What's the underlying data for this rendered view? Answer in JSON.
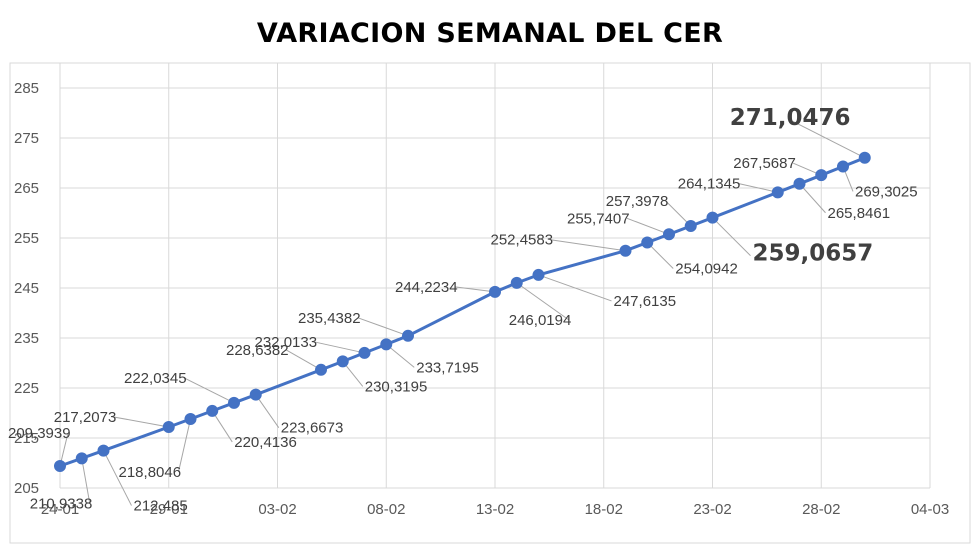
{
  "chart_data": {
    "type": "line",
    "title": "VARIACION SEMANAL DEL CER",
    "xlabel": "",
    "ylabel": "",
    "ylim": [
      205,
      290
    ],
    "y_ticks": [
      205,
      215,
      225,
      235,
      245,
      255,
      265,
      275,
      285
    ],
    "x_ticks": [
      {
        "label": "24-01",
        "day": 0
      },
      {
        "label": "29-01",
        "day": 5
      },
      {
        "label": "03-02",
        "day": 10
      },
      {
        "label": "08-02",
        "day": 15
      },
      {
        "label": "13-02",
        "day": 20
      },
      {
        "label": "18-02",
        "day": 25
      },
      {
        "label": "23-02",
        "day": 30
      },
      {
        "label": "28-02",
        "day": 35
      },
      {
        "label": "04-03",
        "day": 40
      }
    ],
    "grid": true,
    "legend": "none",
    "series": [
      {
        "color": "#4472C4",
        "points": [
          {
            "day": 0,
            "value": 209.3939,
            "label": "209,3939"
          },
          {
            "day": 1,
            "value": 210.9338,
            "label": "210,9338"
          },
          {
            "day": 2,
            "value": 212.485,
            "label": "212,485"
          },
          {
            "day": 5,
            "value": 217.2073,
            "label": "217,2073"
          },
          {
            "day": 6,
            "value": 218.8046,
            "label": "218,8046"
          },
          {
            "day": 7,
            "value": 220.4136,
            "label": "220,4136"
          },
          {
            "day": 8,
            "value": 222.0345,
            "label": "222,0345"
          },
          {
            "day": 9,
            "value": 223.6673,
            "label": "223,6673"
          },
          {
            "day": 12,
            "value": 228.6382,
            "label": "228,6382"
          },
          {
            "day": 13,
            "value": 230.3195,
            "label": "230,3195"
          },
          {
            "day": 14,
            "value": 232.0133,
            "label": "232,0133"
          },
          {
            "day": 15,
            "value": 233.7195,
            "label": "233,7195"
          },
          {
            "day": 16,
            "value": 235.4382,
            "label": "235,4382"
          },
          {
            "day": 20,
            "value": 244.2234,
            "label": "244,2234"
          },
          {
            "day": 21,
            "value": 246.0194,
            "label": "246,0194"
          },
          {
            "day": 22,
            "value": 247.6135,
            "label": "247,6135"
          },
          {
            "day": 26,
            "value": 252.4583,
            "label": "252,4583"
          },
          {
            "day": 27,
            "value": 254.0942,
            "label": "254,0942"
          },
          {
            "day": 28,
            "value": 255.7407,
            "label": "255,7407"
          },
          {
            "day": 29,
            "value": 257.3978,
            "label": "257,3978"
          },
          {
            "day": 30,
            "value": 259.0657,
            "label": "259,0657",
            "emphasis": true
          },
          {
            "day": 33,
            "value": 264.1345,
            "label": "264,1345"
          },
          {
            "day": 34,
            "value": 265.8461,
            "label": "265,8461"
          },
          {
            "day": 35,
            "value": 267.5687,
            "label": "267,5687"
          },
          {
            "day": 36,
            "value": 269.3025,
            "label": "269,3025"
          },
          {
            "day": 37,
            "value": 271.0476,
            "label": "271,0476",
            "emphasis": true
          }
        ]
      }
    ]
  }
}
